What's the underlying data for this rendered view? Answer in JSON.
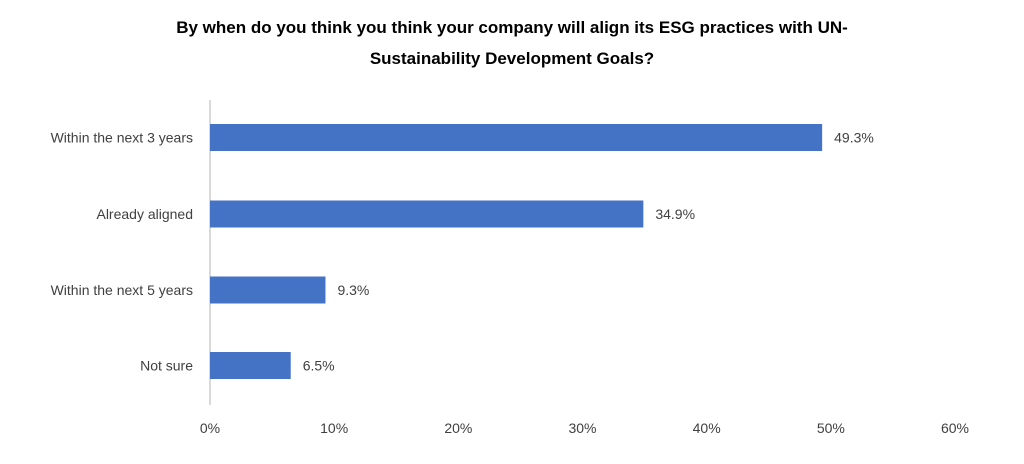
{
  "chart_data": {
    "type": "bar",
    "orientation": "horizontal",
    "title_lines": [
      "By when do you think you think your company will align its ESG practices with UN-",
      "Sustainability Development Goals?"
    ],
    "categories": [
      "Within the next 3 years",
      "Already aligned",
      "Within the next 5 years",
      "Not sure"
    ],
    "values": [
      49.3,
      34.9,
      9.3,
      6.5
    ],
    "data_labels": [
      "49.3%",
      "34.9%",
      "9.3%",
      "6.5%"
    ],
    "xlim": [
      0,
      60
    ],
    "xticks": [
      0,
      10,
      20,
      30,
      40,
      50,
      60
    ],
    "xtick_labels": [
      "0%",
      "10%",
      "20%",
      "30%",
      "40%",
      "50%",
      "60%"
    ],
    "xlabel": "",
    "ylabel": "",
    "grid": false,
    "bar_color": "#4472C4"
  }
}
